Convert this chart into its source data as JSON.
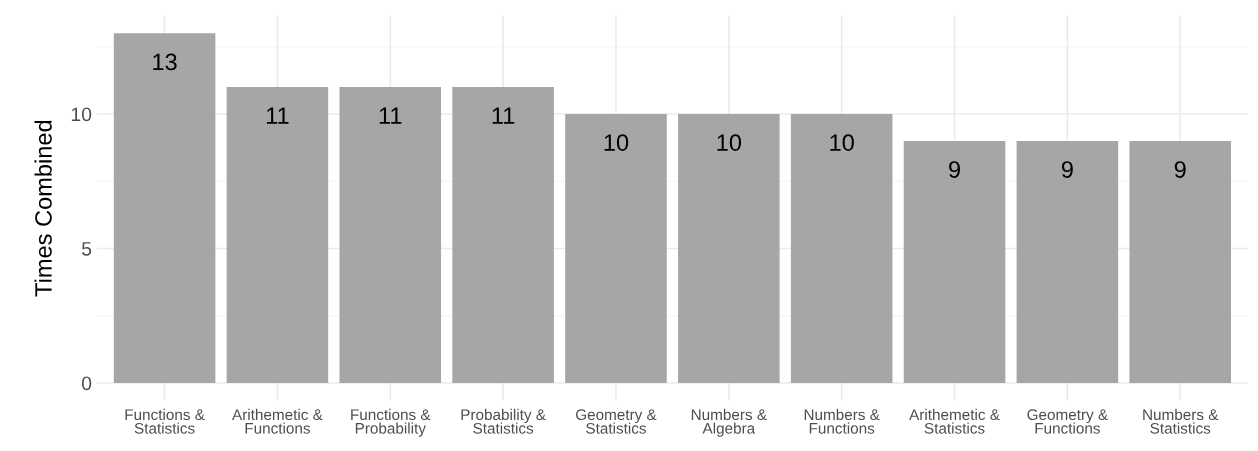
{
  "chart_data": {
    "type": "bar",
    "ylabel": "Times Combined",
    "categories": [
      "Functions &\nStatistics",
      "Arithemetic &\nFunctions",
      "Functions &\nProbability",
      "Probability &\nStatistics",
      "Geometry &\nStatistics",
      "Numbers &\nAlgebra",
      "Numbers &\nFunctions",
      "Arithemetic &\nStatistics",
      "Geometry &\nFunctions",
      "Numbers &\nStatistics"
    ],
    "values": [
      13,
      11,
      11,
      11,
      10,
      10,
      10,
      9,
      9,
      9
    ],
    "color": "#a6a6a6",
    "ylim": [
      -0.65,
      13.65
    ],
    "yticks": [
      0,
      5,
      10
    ],
    "grid": true,
    "data_labels": true
  }
}
